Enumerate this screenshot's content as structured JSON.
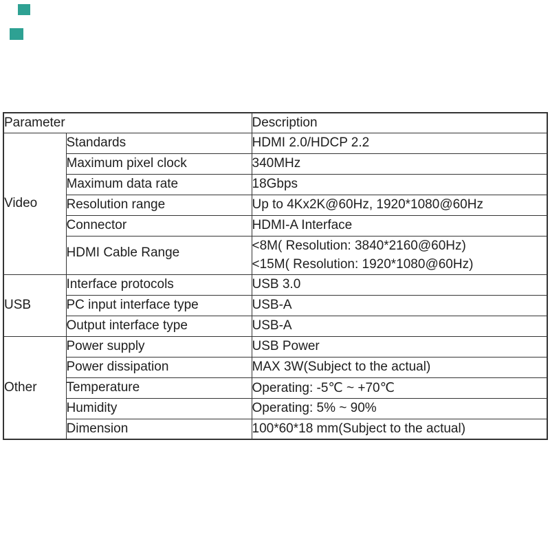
{
  "page": {
    "background": "#ffffff",
    "decor_squares": [
      {
        "name": "decor-square-1",
        "color": "#2ea193"
      },
      {
        "name": "decor-square-2",
        "color": "#2ea193"
      }
    ]
  },
  "table": {
    "border_color": "#333333",
    "text_color": "#1e1e1e",
    "header": {
      "parameter": "Parameter",
      "description": "Description"
    },
    "groups": [
      {
        "label": "Video",
        "rows": [
          {
            "parameter": "Standards",
            "description": [
              "HDMI 2.0/HDCP 2.2"
            ]
          },
          {
            "parameter": "Maximum pixel clock",
            "description": [
              "340MHz"
            ]
          },
          {
            "parameter": "Maximum data rate",
            "description": [
              "18Gbps"
            ]
          },
          {
            "parameter": "Resolution range",
            "description": [
              "Up to 4Kx2K@60Hz, 1920*1080@60Hz"
            ]
          },
          {
            "parameter": "Connector",
            "description": [
              "HDMI-A Interface"
            ]
          },
          {
            "parameter": "HDMI Cable Range",
            "description": [
              "<8M( Resolution: 3840*2160@60Hz)",
              "<15M( Resolution: 1920*1080@60Hz)"
            ]
          }
        ]
      },
      {
        "label": "USB",
        "rows": [
          {
            "parameter": "Interface protocols",
            "description": [
              "USB 3.0"
            ]
          },
          {
            "parameter": "PC input interface type",
            "description": [
              "USB-A"
            ]
          },
          {
            "parameter": "Output interface type",
            "description": [
              "USB-A"
            ]
          }
        ]
      },
      {
        "label": "Other",
        "rows": [
          {
            "parameter": "Power supply",
            "description": [
              "USB Power"
            ]
          },
          {
            "parameter": "Power dissipation",
            "description": [
              "MAX 3W(Subject to the actual)"
            ]
          },
          {
            "parameter": "Temperature",
            "description": [
              "Operating: -5℃ ~ +70℃"
            ]
          },
          {
            "parameter": "Humidity",
            "description": [
              "Operating: 5% ~ 90%"
            ]
          },
          {
            "parameter": "Dimension",
            "description": [
              "100*60*18 mm(Subject to the actual)"
            ]
          }
        ]
      }
    ]
  }
}
